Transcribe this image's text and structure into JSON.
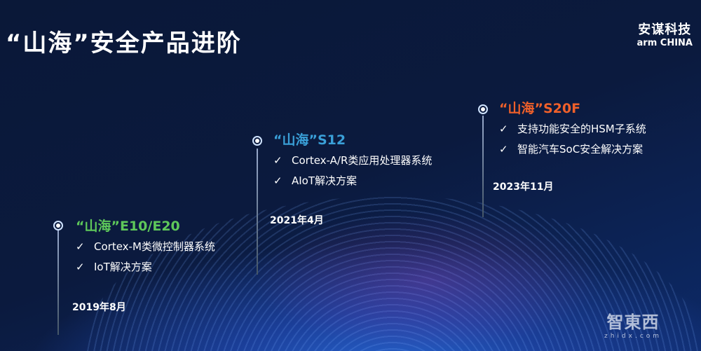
{
  "title": "“山海”安全产品进阶",
  "logo": {
    "cn": "安谋科技",
    "en": "arm CHINA"
  },
  "milestones": [
    {
      "name": "“山海”E10/E20",
      "color": "#5ec85a",
      "items": [
        "Cortex-M类微控制器系统",
        "IoT解决方案"
      ],
      "date": "2019年8月"
    },
    {
      "name": "“山海”S12",
      "color": "#3aa0d8",
      "items": [
        "Cortex-A/R类应用处理器系统",
        "AIoT解决方案"
      ],
      "date": "2021年4月"
    },
    {
      "name": "“山海”S20F",
      "color": "#f0602a",
      "items": [
        "支持功能安全的HSM子系统",
        "智能汽车SoC安全解决方案"
      ],
      "date": "2023年11月"
    }
  ],
  "check": "✓",
  "watermark": {
    "cn": "智東西",
    "en": "zhidx.com"
  }
}
